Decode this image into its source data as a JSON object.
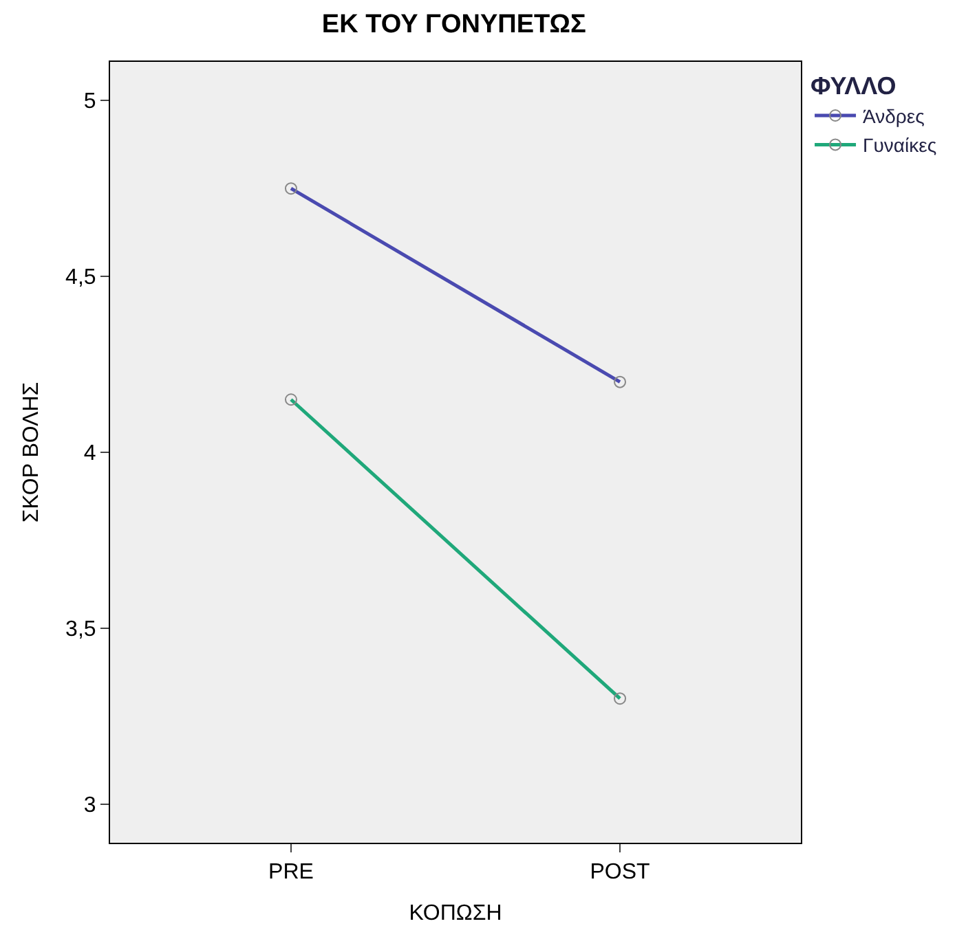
{
  "chart_data": {
    "type": "line",
    "title": "ΕΚ ΤΟΥ ΓΟΝΥΠΕΤΩΣ",
    "xlabel": "ΚΟΠΩΣΗ",
    "ylabel": "ΣΚΟΡ ΒΟΛΗΣ",
    "legend_title": "ΦΥΛΛΟ",
    "categories": [
      "PRE",
      "POST"
    ],
    "series": [
      {
        "name": "Άνδρες",
        "color": "#4a4ab0",
        "values": [
          4.75,
          4.2
        ]
      },
      {
        "name": "Γυναίκες",
        "color": "#1fa87a",
        "values": [
          4.15,
          3.3
        ]
      }
    ],
    "ylim": [
      2.89,
      5.11
    ],
    "yticks": [
      {
        "value": 3,
        "label": "3"
      },
      {
        "value": 3.5,
        "label": "3,5"
      },
      {
        "value": 4,
        "label": "4"
      },
      {
        "value": 4.5,
        "label": "4,5"
      },
      {
        "value": 5,
        "label": "5"
      }
    ],
    "grid": false,
    "legend": "top right",
    "marker": "circle",
    "line_style": "solid"
  }
}
